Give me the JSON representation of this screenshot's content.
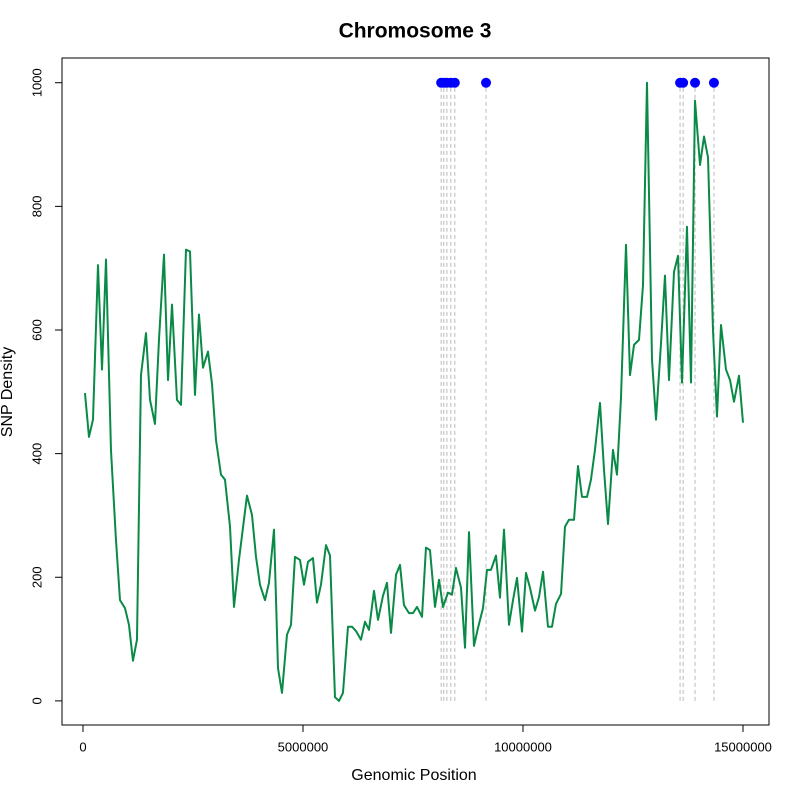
{
  "chart_data": {
    "type": "line",
    "title": "Chromosome 3",
    "x_label": "Genomic Position",
    "y_label": "SNP Density",
    "xlim": [
      -477000,
      15591000
    ],
    "ylim": [
      -39,
      1040
    ],
    "xticks": [
      0,
      5000000,
      10000000,
      15000000
    ],
    "yticks": [
      0,
      200,
      400,
      600,
      800,
      1000
    ],
    "color": "#0a8a47",
    "x": [
      45000,
      136000,
      227000,
      341000,
      432000,
      523000,
      636000,
      750000,
      841000,
      955000,
      1045000,
      1136000,
      1227000,
      1318000,
      1432000,
      1523000,
      1636000,
      1727000,
      1841000,
      1932000,
      2023000,
      2136000,
      2227000,
      2341000,
      2432000,
      2545000,
      2636000,
      2727000,
      2841000,
      2932000,
      3023000,
      3136000,
      3227000,
      3341000,
      3432000,
      3545000,
      3727000,
      3841000,
      3932000,
      4023000,
      4136000,
      4227000,
      4341000,
      4432000,
      4523000,
      4636000,
      4727000,
      4818000,
      4932000,
      5023000,
      5114000,
      5227000,
      5318000,
      5409000,
      5523000,
      5614000,
      5727000,
      5818000,
      5909000,
      6023000,
      6114000,
      6205000,
      6318000,
      6409000,
      6500000,
      6614000,
      6705000,
      6818000,
      6909000,
      7000000,
      7114000,
      7205000,
      7295000,
      7409000,
      7500000,
      7591000,
      7705000,
      7795000,
      7886000,
      8000000,
      8091000,
      8182000,
      8295000,
      8386000,
      8477000,
      8591000,
      8682000,
      8773000,
      8886000,
      8977000,
      9091000,
      9182000,
      9273000,
      9386000,
      9477000,
      9568000,
      9682000,
      9773000,
      9864000,
      9977000,
      10068000,
      10159000,
      10273000,
      10364000,
      10455000,
      10568000,
      10659000,
      10750000,
      10864000,
      10955000,
      11045000,
      11159000,
      11250000,
      11341000,
      11455000,
      11545000,
      11636000,
      11750000,
      11841000,
      11932000,
      12045000,
      12136000,
      12227000,
      12341000,
      12432000,
      12523000,
      12636000,
      12727000,
      12818000,
      12932000,
      13023000,
      13136000,
      13227000,
      13318000,
      13432000,
      13523000,
      13614000,
      13727000,
      13818000,
      13909000,
      14023000,
      14114000,
      14205000,
      14318000,
      14409000,
      14500000,
      14614000,
      14705000,
      14795000,
      14909000,
      15000000
    ],
    "values": [
      498,
      427,
      455,
      705,
      536,
      714,
      406,
      260,
      163,
      150,
      123,
      65,
      99,
      527,
      595,
      487,
      448,
      584,
      722,
      519,
      641,
      487,
      479,
      730,
      727,
      495,
      625,
      539,
      565,
      513,
      422,
      366,
      358,
      282,
      152,
      228,
      332,
      301,
      233,
      188,
      163,
      191,
      277,
      53,
      13,
      107,
      123,
      233,
      228,
      188,
      225,
      231,
      159,
      188,
      252,
      235,
      6,
      0,
      13,
      120,
      120,
      113,
      99,
      128,
      115,
      178,
      131,
      170,
      191,
      110,
      204,
      220,
      155,
      142,
      142,
      152,
      136,
      248,
      244,
      152,
      196,
      152,
      175,
      172,
      215,
      183,
      86,
      273,
      89,
      118,
      150,
      212,
      212,
      235,
      167,
      277,
      123,
      163,
      199,
      112,
      207,
      183,
      146,
      168,
      209,
      120,
      120,
      157,
      173,
      282,
      293,
      293,
      380,
      330,
      330,
      358,
      406,
      482,
      374,
      286,
      406,
      366,
      490,
      738,
      527,
      576,
      584,
      672,
      1000,
      552,
      455,
      578,
      688,
      519,
      694,
      720,
      515,
      767,
      515,
      971,
      867,
      913,
      879,
      600,
      460,
      608,
      536,
      519,
      484,
      526,
      450
    ],
    "highlights": {
      "type": "scatter",
      "color": "#0000ff",
      "x": [
        8140000,
        8200000,
        8270000,
        8360000,
        8450000,
        9160000,
        13570000,
        13640000,
        13910000,
        14340000
      ],
      "values": [
        1000,
        1000,
        1000,
        1000,
        1000,
        1000,
        1000,
        1000,
        1000,
        1000
      ],
      "guide_color": "#bbbbbb"
    }
  }
}
